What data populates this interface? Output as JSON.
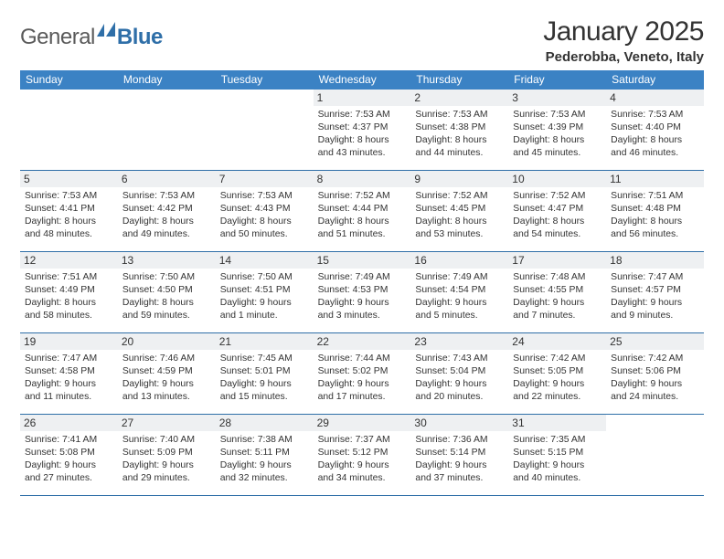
{
  "logo": {
    "part1": "General",
    "part2": "Blue"
  },
  "title": "January 2025",
  "location": "Pederobba, Veneto, Italy",
  "colors": {
    "header_bg": "#3b82c4",
    "daynum_bg": "#eef0f2",
    "rule": "#2f6fa8",
    "text": "#333333",
    "logo_blue": "#2f6fa8",
    "logo_gray": "#5a5a5a"
  },
  "daynames": [
    "Sunday",
    "Monday",
    "Tuesday",
    "Wednesday",
    "Thursday",
    "Friday",
    "Saturday"
  ],
  "weeks": [
    [
      null,
      null,
      null,
      {
        "n": "1",
        "sunrise": "7:53 AM",
        "sunset": "4:37 PM",
        "dl1": "Daylight: 8 hours",
        "dl2": "and 43 minutes."
      },
      {
        "n": "2",
        "sunrise": "7:53 AM",
        "sunset": "4:38 PM",
        "dl1": "Daylight: 8 hours",
        "dl2": "and 44 minutes."
      },
      {
        "n": "3",
        "sunrise": "7:53 AM",
        "sunset": "4:39 PM",
        "dl1": "Daylight: 8 hours",
        "dl2": "and 45 minutes."
      },
      {
        "n": "4",
        "sunrise": "7:53 AM",
        "sunset": "4:40 PM",
        "dl1": "Daylight: 8 hours",
        "dl2": "and 46 minutes."
      }
    ],
    [
      {
        "n": "5",
        "sunrise": "7:53 AM",
        "sunset": "4:41 PM",
        "dl1": "Daylight: 8 hours",
        "dl2": "and 48 minutes."
      },
      {
        "n": "6",
        "sunrise": "7:53 AM",
        "sunset": "4:42 PM",
        "dl1": "Daylight: 8 hours",
        "dl2": "and 49 minutes."
      },
      {
        "n": "7",
        "sunrise": "7:53 AM",
        "sunset": "4:43 PM",
        "dl1": "Daylight: 8 hours",
        "dl2": "and 50 minutes."
      },
      {
        "n": "8",
        "sunrise": "7:52 AM",
        "sunset": "4:44 PM",
        "dl1": "Daylight: 8 hours",
        "dl2": "and 51 minutes."
      },
      {
        "n": "9",
        "sunrise": "7:52 AM",
        "sunset": "4:45 PM",
        "dl1": "Daylight: 8 hours",
        "dl2": "and 53 minutes."
      },
      {
        "n": "10",
        "sunrise": "7:52 AM",
        "sunset": "4:47 PM",
        "dl1": "Daylight: 8 hours",
        "dl2": "and 54 minutes."
      },
      {
        "n": "11",
        "sunrise": "7:51 AM",
        "sunset": "4:48 PM",
        "dl1": "Daylight: 8 hours",
        "dl2": "and 56 minutes."
      }
    ],
    [
      {
        "n": "12",
        "sunrise": "7:51 AM",
        "sunset": "4:49 PM",
        "dl1": "Daylight: 8 hours",
        "dl2": "and 58 minutes."
      },
      {
        "n": "13",
        "sunrise": "7:50 AM",
        "sunset": "4:50 PM",
        "dl1": "Daylight: 8 hours",
        "dl2": "and 59 minutes."
      },
      {
        "n": "14",
        "sunrise": "7:50 AM",
        "sunset": "4:51 PM",
        "dl1": "Daylight: 9 hours",
        "dl2": "and 1 minute."
      },
      {
        "n": "15",
        "sunrise": "7:49 AM",
        "sunset": "4:53 PM",
        "dl1": "Daylight: 9 hours",
        "dl2": "and 3 minutes."
      },
      {
        "n": "16",
        "sunrise": "7:49 AM",
        "sunset": "4:54 PM",
        "dl1": "Daylight: 9 hours",
        "dl2": "and 5 minutes."
      },
      {
        "n": "17",
        "sunrise": "7:48 AM",
        "sunset": "4:55 PM",
        "dl1": "Daylight: 9 hours",
        "dl2": "and 7 minutes."
      },
      {
        "n": "18",
        "sunrise": "7:47 AM",
        "sunset": "4:57 PM",
        "dl1": "Daylight: 9 hours",
        "dl2": "and 9 minutes."
      }
    ],
    [
      {
        "n": "19",
        "sunrise": "7:47 AM",
        "sunset": "4:58 PM",
        "dl1": "Daylight: 9 hours",
        "dl2": "and 11 minutes."
      },
      {
        "n": "20",
        "sunrise": "7:46 AM",
        "sunset": "4:59 PM",
        "dl1": "Daylight: 9 hours",
        "dl2": "and 13 minutes."
      },
      {
        "n": "21",
        "sunrise": "7:45 AM",
        "sunset": "5:01 PM",
        "dl1": "Daylight: 9 hours",
        "dl2": "and 15 minutes."
      },
      {
        "n": "22",
        "sunrise": "7:44 AM",
        "sunset": "5:02 PM",
        "dl1": "Daylight: 9 hours",
        "dl2": "and 17 minutes."
      },
      {
        "n": "23",
        "sunrise": "7:43 AM",
        "sunset": "5:04 PM",
        "dl1": "Daylight: 9 hours",
        "dl2": "and 20 minutes."
      },
      {
        "n": "24",
        "sunrise": "7:42 AM",
        "sunset": "5:05 PM",
        "dl1": "Daylight: 9 hours",
        "dl2": "and 22 minutes."
      },
      {
        "n": "25",
        "sunrise": "7:42 AM",
        "sunset": "5:06 PM",
        "dl1": "Daylight: 9 hours",
        "dl2": "and 24 minutes."
      }
    ],
    [
      {
        "n": "26",
        "sunrise": "7:41 AM",
        "sunset": "5:08 PM",
        "dl1": "Daylight: 9 hours",
        "dl2": "and 27 minutes."
      },
      {
        "n": "27",
        "sunrise": "7:40 AM",
        "sunset": "5:09 PM",
        "dl1": "Daylight: 9 hours",
        "dl2": "and 29 minutes."
      },
      {
        "n": "28",
        "sunrise": "7:38 AM",
        "sunset": "5:11 PM",
        "dl1": "Daylight: 9 hours",
        "dl2": "and 32 minutes."
      },
      {
        "n": "29",
        "sunrise": "7:37 AM",
        "sunset": "5:12 PM",
        "dl1": "Daylight: 9 hours",
        "dl2": "and 34 minutes."
      },
      {
        "n": "30",
        "sunrise": "7:36 AM",
        "sunset": "5:14 PM",
        "dl1": "Daylight: 9 hours",
        "dl2": "and 37 minutes."
      },
      {
        "n": "31",
        "sunrise": "7:35 AM",
        "sunset": "5:15 PM",
        "dl1": "Daylight: 9 hours",
        "dl2": "and 40 minutes."
      },
      null
    ]
  ],
  "labels": {
    "sunrise": "Sunrise: ",
    "sunset": "Sunset: "
  }
}
